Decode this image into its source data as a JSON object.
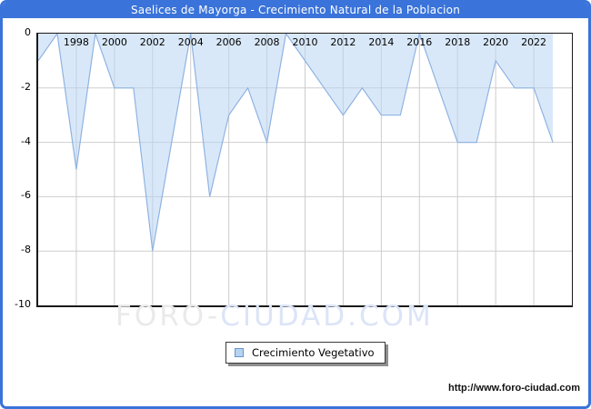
{
  "window": {
    "title": "Saelices de Mayorga - Crecimiento Natural de la Poblacion",
    "accent_color": "#3a73d9"
  },
  "chart_data": {
    "type": "area",
    "title": "Saelices de Mayorga - Crecimiento Natural de la Poblacion",
    "x": [
      1996,
      1997,
      1998,
      1999,
      2000,
      2001,
      2002,
      2003,
      2004,
      2005,
      2006,
      2007,
      2008,
      2009,
      2010,
      2011,
      2012,
      2013,
      2014,
      2015,
      2016,
      2017,
      2018,
      2019,
      2020,
      2021,
      2022,
      2023
    ],
    "series": [
      {
        "name": "Crecimiento Vegetativo",
        "values": [
          -1,
          0,
          -5,
          0,
          -2,
          -2,
          -8,
          -4,
          0,
          -6,
          -3,
          -2,
          -4,
          0,
          -1,
          -2,
          -3,
          -2,
          -3,
          -3,
          0,
          -2,
          -4,
          -4,
          -1,
          -2,
          -2,
          -4
        ]
      }
    ],
    "x_axis": {
      "min": 1996,
      "max": 2024,
      "ticks": [
        1998,
        2000,
        2002,
        2004,
        2006,
        2008,
        2010,
        2012,
        2014,
        2016,
        2018,
        2020,
        2022
      ]
    },
    "y_axis": {
      "min": -10,
      "max": 0,
      "ticks": [
        0,
        -2,
        -4,
        -6,
        -8,
        -10
      ],
      "grid_ticks": [
        -2,
        -4,
        -6,
        -8
      ]
    },
    "legend": {
      "label": "Crecimiento Vegetativo",
      "position": "bottom-center"
    },
    "grid": true,
    "colors": {
      "area_fill": "#bad5f3",
      "area_fill_opacity": 0.55,
      "line": "#8fb3e3",
      "grid": "#cdcdcd",
      "plot_border": "#1a1a1a",
      "watermark_gray": "#eaeaea",
      "watermark_blue": "#dce4f7",
      "legend_swatch_fill": "#b7d3f1",
      "legend_swatch_border": "#6694cc"
    }
  },
  "watermark": {
    "part1": "FORO-",
    "part2": "CIUDAD.COM"
  },
  "footer": {
    "url": "http://www.foro-ciudad.com"
  }
}
